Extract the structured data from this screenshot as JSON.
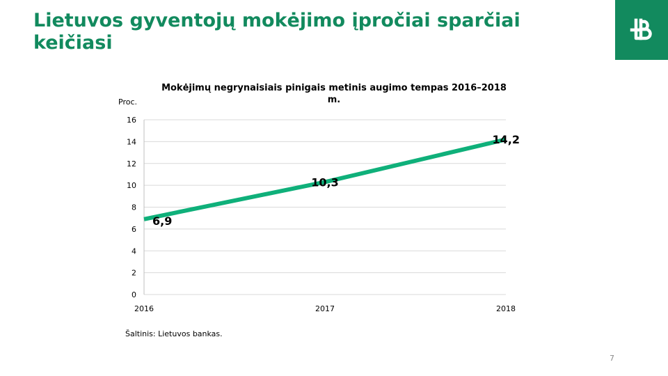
{
  "slide": {
    "title": "Lietuvos gyventojų mokėjimo įpročiai sparčiai keičiasi",
    "source": "Šaltinis: Lietuvos bankas.",
    "page_number": "7",
    "accent_color": "#128a5e",
    "logo_icon": "bank-of-lithuania-logo-icon"
  },
  "chart_data": {
    "type": "line",
    "title": "Mokėjimų negrynaisiais pinigais metinis augimo tempas 2016–2018 m.",
    "ylabel": "Proc.",
    "xlabel": "",
    "categories": [
      "2016",
      "2017",
      "2018"
    ],
    "series": [
      {
        "values": [
          6.9,
          10.3,
          14.2
        ],
        "labels": [
          "6,9",
          "10,3",
          "14,2"
        ],
        "color": "#0fb07a"
      }
    ],
    "yticks": [
      "0",
      "2",
      "4",
      "6",
      "8",
      "10",
      "12",
      "14",
      "16"
    ],
    "ylim": [
      0,
      16
    ],
    "grid": true,
    "legend": "none"
  }
}
